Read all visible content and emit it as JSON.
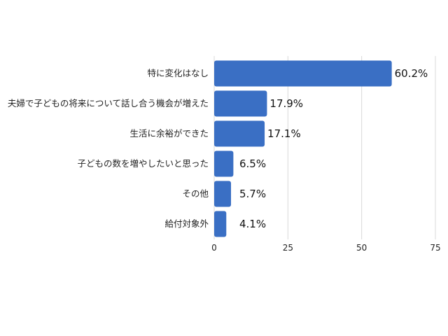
{
  "chart_data": {
    "type": "bar",
    "orientation": "horizontal",
    "categories": [
      "特に変化はなし",
      "夫婦で子どもの将来について話し合う機会が増えた",
      "生活に余裕ができた",
      "子どもの数を増やしたいと思った",
      "その他",
      "給付対象外"
    ],
    "values": [
      60.2,
      17.9,
      17.1,
      6.5,
      5.7,
      4.1
    ],
    "value_labels": [
      "60.2%",
      "17.9%",
      "17.1%",
      "6.5%",
      "5.7%",
      "4.1%"
    ],
    "xlim": [
      0,
      75
    ],
    "xticks": [
      0,
      25,
      50,
      75
    ],
    "xtick_labels": [
      "0",
      "25",
      "50",
      "75"
    ],
    "grid": true,
    "bar_color": "#3a6fc4",
    "gridline_color": "#d9d9d9"
  }
}
